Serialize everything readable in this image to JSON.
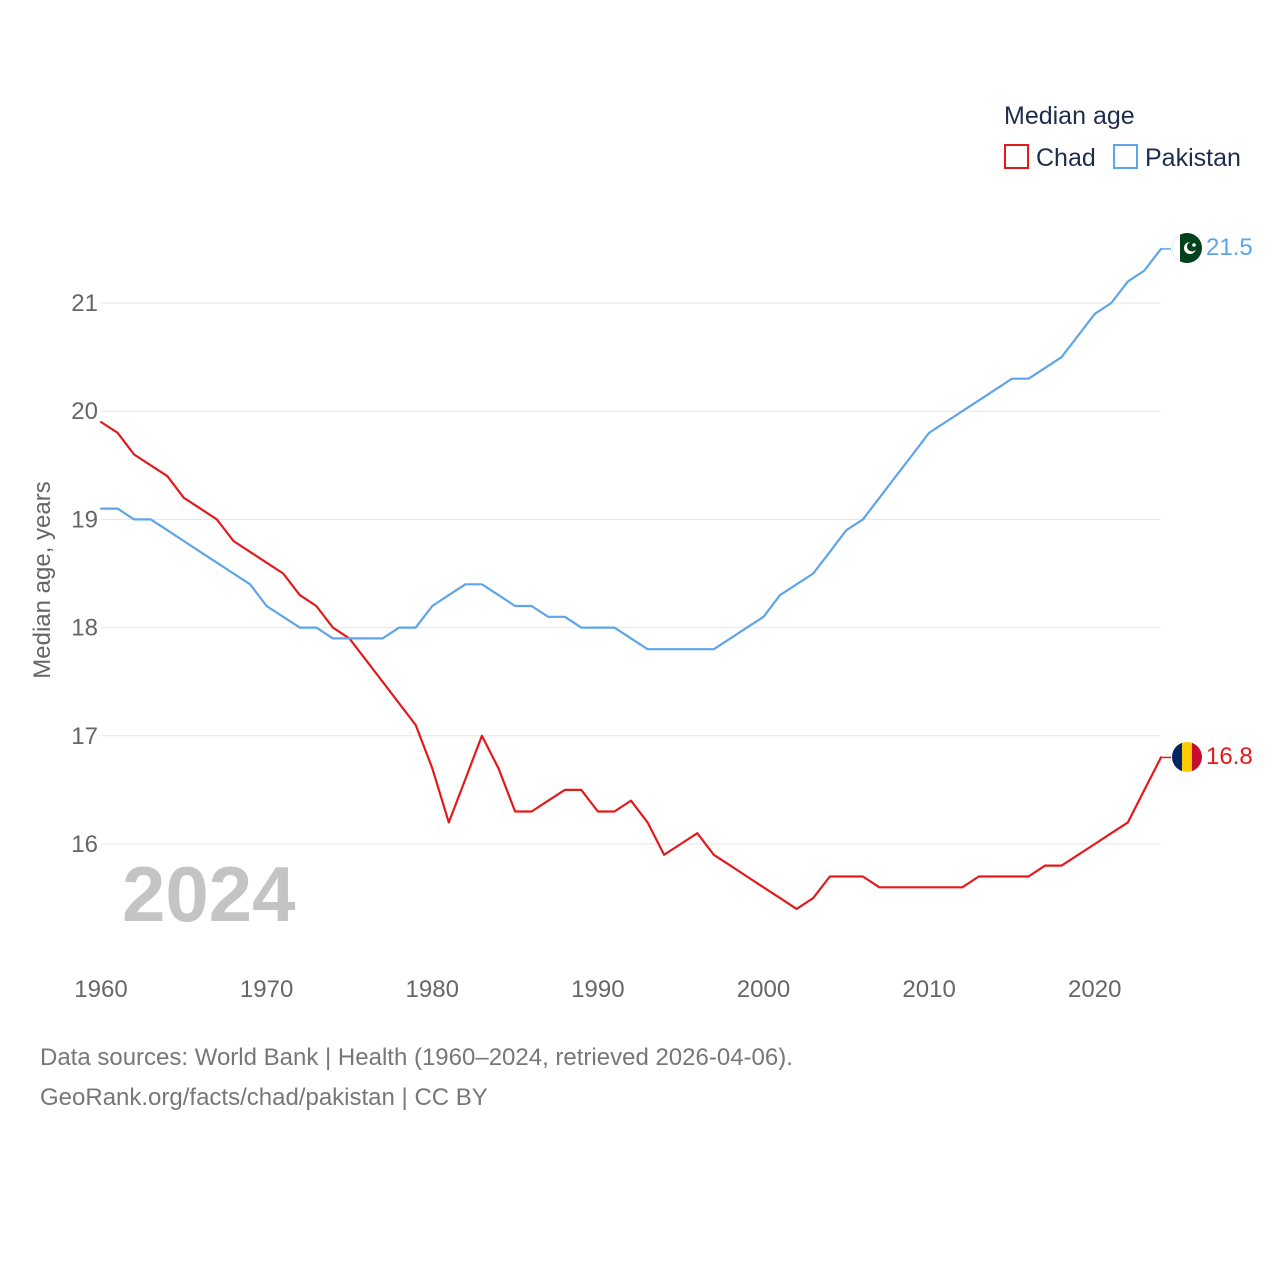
{
  "chart_data": {
    "type": "line",
    "title": "",
    "legend_title": "Median age",
    "ylabel": "Median age, years",
    "xlabel": "",
    "year_label": "2024",
    "xlim": [
      1960,
      2024
    ],
    "ylim": [
      15,
      21.5
    ],
    "x_ticks": [
      1960,
      1970,
      1980,
      1990,
      2000,
      2010,
      2020
    ],
    "y_ticks": [
      16,
      17,
      18,
      19,
      20,
      21
    ],
    "grid": true,
    "legend_position": "top-right",
    "series": [
      {
        "name": "Chad",
        "color": "#e31a1c",
        "end_label": "16.8",
        "flag": "chad-flag-icon",
        "x": [
          1960,
          1961,
          1962,
          1963,
          1964,
          1965,
          1966,
          1967,
          1968,
          1969,
          1970,
          1971,
          1972,
          1973,
          1974,
          1975,
          1976,
          1977,
          1978,
          1979,
          1980,
          1981,
          1982,
          1983,
          1984,
          1985,
          1986,
          1987,
          1988,
          1989,
          1990,
          1991,
          1992,
          1993,
          1994,
          1995,
          1996,
          1997,
          1998,
          1999,
          2000,
          2001,
          2002,
          2003,
          2004,
          2005,
          2006,
          2007,
          2008,
          2009,
          2010,
          2011,
          2012,
          2013,
          2014,
          2015,
          2016,
          2017,
          2018,
          2019,
          2020,
          2021,
          2022,
          2023,
          2024
        ],
        "values": [
          19.9,
          19.8,
          19.6,
          19.5,
          19.4,
          19.2,
          19.1,
          19.0,
          18.8,
          18.7,
          18.6,
          18.5,
          18.3,
          18.2,
          18.0,
          17.9,
          17.7,
          17.5,
          17.3,
          17.1,
          16.7,
          16.2,
          16.6,
          17.0,
          16.7,
          16.3,
          16.3,
          16.4,
          16.5,
          16.5,
          16.3,
          16.3,
          16.4,
          16.2,
          15.9,
          16.0,
          16.1,
          15.9,
          15.8,
          15.7,
          15.6,
          15.5,
          15.4,
          15.5,
          15.7,
          15.7,
          15.7,
          15.6,
          15.6,
          15.6,
          15.6,
          15.6,
          15.6,
          15.7,
          15.7,
          15.7,
          15.7,
          15.8,
          15.8,
          15.9,
          16.0,
          16.1,
          16.2,
          16.5,
          16.8
        ]
      },
      {
        "name": "Pakistan",
        "color": "#5da5e8",
        "end_label": "21.5",
        "flag": "pakistan-flag-icon",
        "x": [
          1960,
          1961,
          1962,
          1963,
          1964,
          1965,
          1966,
          1967,
          1968,
          1969,
          1970,
          1971,
          1972,
          1973,
          1974,
          1975,
          1976,
          1977,
          1978,
          1979,
          1980,
          1981,
          1982,
          1983,
          1984,
          1985,
          1986,
          1987,
          1988,
          1989,
          1990,
          1991,
          1992,
          1993,
          1994,
          1995,
          1996,
          1997,
          1998,
          1999,
          2000,
          2001,
          2002,
          2003,
          2004,
          2005,
          2006,
          2007,
          2008,
          2009,
          2010,
          2011,
          2012,
          2013,
          2014,
          2015,
          2016,
          2017,
          2018,
          2019,
          2020,
          2021,
          2022,
          2023,
          2024
        ],
        "values": [
          19.1,
          19.1,
          19.0,
          19.0,
          18.9,
          18.8,
          18.7,
          18.6,
          18.5,
          18.4,
          18.2,
          18.1,
          18.0,
          18.0,
          17.9,
          17.9,
          17.9,
          17.9,
          18.0,
          18.0,
          18.2,
          18.3,
          18.4,
          18.4,
          18.3,
          18.2,
          18.2,
          18.1,
          18.1,
          18.0,
          18.0,
          18.0,
          17.9,
          17.8,
          17.8,
          17.8,
          17.8,
          17.8,
          17.9,
          18.0,
          18.1,
          18.3,
          18.4,
          18.5,
          18.7,
          18.9,
          19.0,
          19.2,
          19.4,
          19.6,
          19.8,
          19.9,
          20.0,
          20.1,
          20.2,
          20.3,
          20.3,
          20.4,
          20.5,
          20.7,
          20.9,
          21.0,
          21.2,
          21.3,
          21.5
        ]
      }
    ]
  },
  "footer": {
    "sources": "Data sources: World Bank | Health (1960–2024, retrieved 2026-04-06).",
    "link": "GeoRank.org/facts/chad/pakistan | CC BY"
  }
}
